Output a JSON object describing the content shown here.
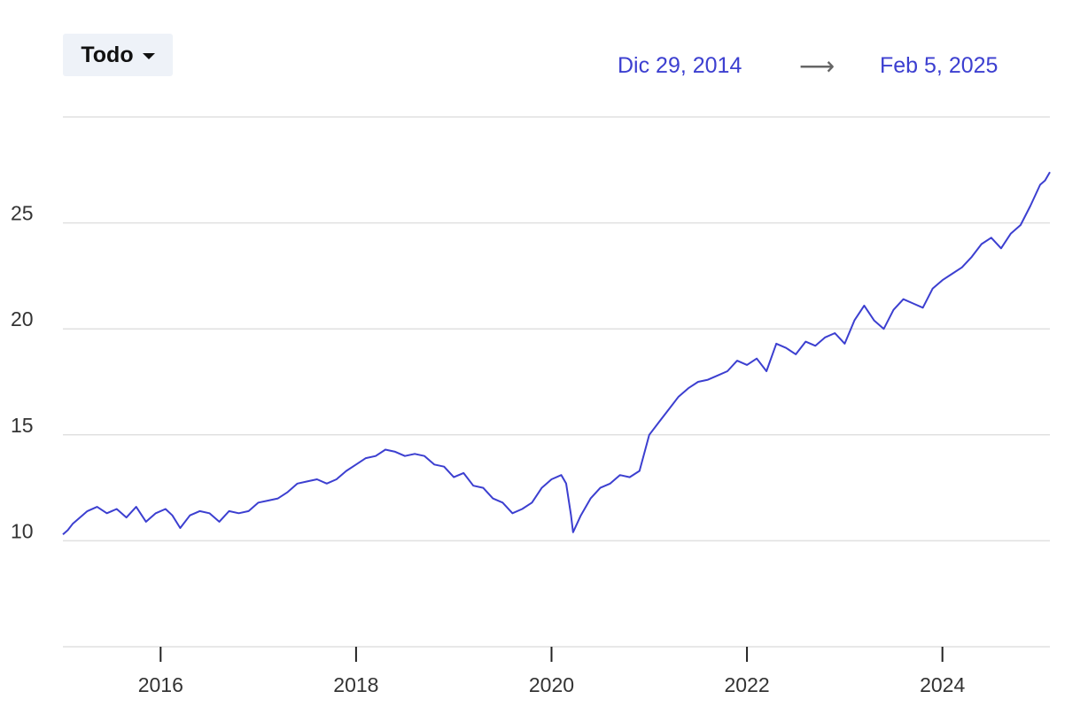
{
  "range_selector": {
    "label": "Todo"
  },
  "date_range": {
    "start": "Dic 29, 2014",
    "arrow": "⟶",
    "end": "Feb 5, 2025"
  },
  "colors": {
    "line": "#3c3fd0",
    "grid": "#e0e0e0",
    "accent": "#3c3fd0"
  },
  "chart_data": {
    "type": "line",
    "title": "",
    "xlabel": "",
    "ylabel": "",
    "xlim": [
      2015.0,
      2025.1
    ],
    "ylim": [
      5,
      30
    ],
    "yticks": [
      10,
      15,
      20,
      25
    ],
    "ytick_labels": [
      "10",
      "15",
      "20",
      "25"
    ],
    "xticks": [
      2016,
      2018,
      2020,
      2022,
      2024
    ],
    "xtick_labels": [
      "2016",
      "2018",
      "2020",
      "2022",
      "2024"
    ],
    "grid": true,
    "series": [
      {
        "x": [
          2015.0,
          2015.05,
          2015.1,
          2015.15,
          2015.25,
          2015.35,
          2015.45,
          2015.55,
          2015.65,
          2015.75,
          2015.85,
          2015.95,
          2016.05,
          2016.12,
          2016.2,
          2016.3,
          2016.4,
          2016.5,
          2016.6,
          2016.7,
          2016.8,
          2016.9,
          2017.0,
          2017.1,
          2017.2,
          2017.3,
          2017.4,
          2017.5,
          2017.6,
          2017.7,
          2017.8,
          2017.9,
          2018.0,
          2018.1,
          2018.2,
          2018.3,
          2018.4,
          2018.5,
          2018.6,
          2018.7,
          2018.8,
          2018.9,
          2019.0,
          2019.1,
          2019.2,
          2019.3,
          2019.4,
          2019.5,
          2019.6,
          2019.7,
          2019.8,
          2019.9,
          2020.0,
          2020.1,
          2020.15,
          2020.2,
          2020.22,
          2020.3,
          2020.4,
          2020.5,
          2020.6,
          2020.7,
          2020.8,
          2020.9,
          2021.0,
          2021.1,
          2021.2,
          2021.3,
          2021.4,
          2021.5,
          2021.6,
          2021.7,
          2021.8,
          2021.9,
          2022.0,
          2022.1,
          2022.2,
          2022.3,
          2022.4,
          2022.5,
          2022.6,
          2022.7,
          2022.8,
          2022.9,
          2023.0,
          2023.1,
          2023.2,
          2023.3,
          2023.4,
          2023.5,
          2023.6,
          2023.7,
          2023.8,
          2023.9,
          2024.0,
          2024.1,
          2024.2,
          2024.3,
          2024.4,
          2024.5,
          2024.6,
          2024.7,
          2024.8,
          2024.9,
          2025.0,
          2025.05,
          2025.1
        ],
        "y": [
          10.3,
          10.5,
          10.8,
          11.0,
          11.4,
          11.6,
          11.3,
          11.5,
          11.1,
          11.6,
          10.9,
          11.3,
          11.5,
          11.2,
          10.6,
          11.2,
          11.4,
          11.3,
          10.9,
          11.4,
          11.3,
          11.4,
          11.8,
          11.9,
          12.0,
          12.3,
          12.7,
          12.8,
          12.9,
          12.7,
          12.9,
          13.3,
          13.6,
          13.9,
          14.0,
          14.3,
          14.2,
          14.0,
          14.1,
          14.0,
          13.6,
          13.5,
          13.0,
          13.2,
          12.6,
          12.5,
          12.0,
          11.8,
          11.3,
          11.5,
          11.8,
          12.5,
          12.9,
          13.1,
          12.7,
          11.2,
          10.4,
          11.2,
          12.0,
          12.5,
          12.7,
          13.1,
          13.0,
          13.3,
          15.0,
          15.6,
          16.2,
          16.8,
          17.2,
          17.5,
          17.6,
          17.8,
          18.0,
          18.5,
          18.3,
          18.6,
          18.0,
          19.3,
          19.1,
          18.8,
          19.4,
          19.2,
          19.6,
          19.8,
          19.3,
          20.4,
          21.1,
          20.4,
          20.0,
          20.9,
          21.4,
          21.2,
          21.0,
          21.9,
          22.3,
          22.6,
          22.9,
          23.4,
          24.0,
          24.3,
          23.8,
          24.5,
          24.9,
          25.8,
          26.8,
          27.0,
          27.4
        ]
      }
    ]
  }
}
